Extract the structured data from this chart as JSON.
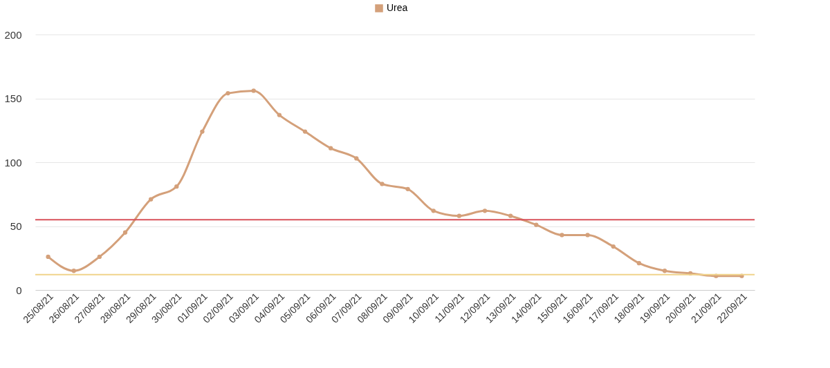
{
  "chart_data": {
    "type": "line",
    "categories": [
      "25/08/21",
      "26/08/21",
      "27/08/21",
      "28/08/21",
      "29/08/21",
      "30/08/21",
      "01/09/21",
      "02/09/21",
      "03/09/21",
      "04/09/21",
      "05/09/21",
      "06/09/21",
      "07/09/21",
      "08/09/21",
      "09/09/21",
      "10/09/21",
      "11/09/21",
      "12/09/21",
      "13/09/21",
      "14/09/21",
      "15/09/21",
      "16/09/21",
      "17/09/21",
      "18/09/21",
      "19/09/21",
      "20/09/21",
      "21/09/21",
      "22/09/21"
    ],
    "series": [
      {
        "name": "Urea",
        "color": "#d4a07a",
        "values": [
          26,
          15,
          26,
          45,
          71,
          81,
          124,
          154,
          156,
          137,
          124,
          111,
          103,
          83,
          79,
          62,
          58,
          62,
          58,
          51,
          43,
          43,
          34,
          21,
          15,
          13,
          11,
          11
        ]
      }
    ],
    "ylim": [
      0,
      200
    ],
    "yticks": [
      0,
      50,
      100,
      150,
      200
    ],
    "grid": "y",
    "legend": "top",
    "marker": "circle",
    "line_style": "solid",
    "ref_lines": [
      {
        "axis": "y",
        "value": 55,
        "color": "#d9505a"
      },
      {
        "axis": "y",
        "value": 12,
        "color": "#f0d38a"
      }
    ]
  }
}
